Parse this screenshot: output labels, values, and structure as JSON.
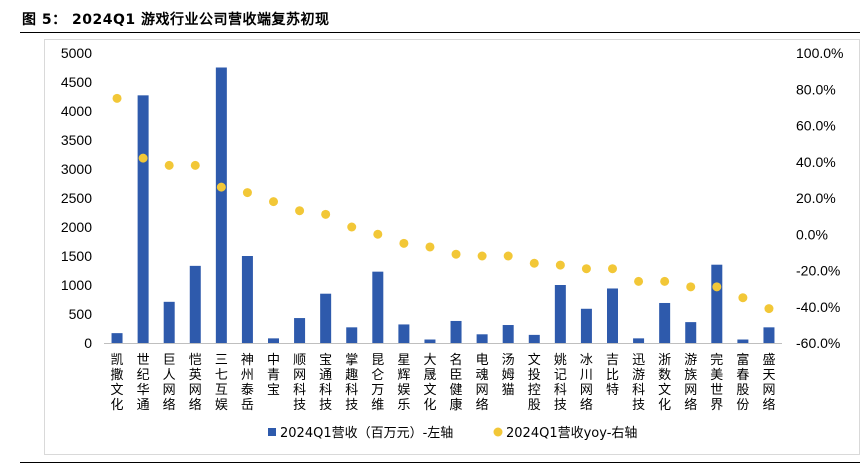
{
  "figure": {
    "title": "图 5： 2024Q1 游戏行业公司营收端复苏初现"
  },
  "chart_data": {
    "type": "bar",
    "categories": [
      "凯撒文化",
      "世纪华通",
      "巨人网络",
      "恺英网络",
      "三七互娱",
      "神州泰岳",
      "中青宝",
      "顺网科技",
      "宝通科技",
      "掌趣科技",
      "昆仑万维",
      "星辉娱乐",
      "大晟文化",
      "名臣健康",
      "电魂网络",
      "汤姆猫",
      "文投控股",
      "姚记科技",
      "冰川网络",
      "吉比特",
      "迅游科技",
      "浙数文化",
      "游族网络",
      "完美世界",
      "富春股份",
      "盛天网络"
    ],
    "series": [
      {
        "name": "2024Q1营收（百万元）-左轴",
        "type": "bar",
        "axis": "left",
        "color": "#2e5aac",
        "values": [
          170,
          4270,
          710,
          1330,
          4750,
          1500,
          80,
          430,
          850,
          270,
          1230,
          320,
          60,
          380,
          150,
          310,
          140,
          1000,
          590,
          940,
          80,
          690,
          360,
          1350,
          60,
          270
        ]
      },
      {
        "name": "2024Q1营收yoy-右轴",
        "type": "scatter",
        "axis": "right",
        "color": "#f2c737",
        "values": [
          75,
          42,
          38,
          38,
          26,
          23,
          18,
          13,
          11,
          4,
          0,
          -5,
          -7,
          -11,
          -12,
          -12,
          -16,
          -17,
          -19,
          -19,
          -26,
          -26,
          -29,
          -29,
          -35,
          -41
        ]
      }
    ],
    "left_axis": {
      "ylim": [
        0,
        5000
      ],
      "ticks": [
        0,
        500,
        1000,
        1500,
        2000,
        2500,
        3000,
        3500,
        4000,
        4500,
        5000
      ]
    },
    "right_axis": {
      "ylim": [
        -60,
        100
      ],
      "ticks": [
        "-60.0%",
        "-40.0%",
        "-20.0%",
        "0.0%",
        "20.0%",
        "40.0%",
        "60.0%",
        "80.0%",
        "100.0%"
      ]
    },
    "legend": {
      "position": "bottom"
    },
    "grid": false
  }
}
